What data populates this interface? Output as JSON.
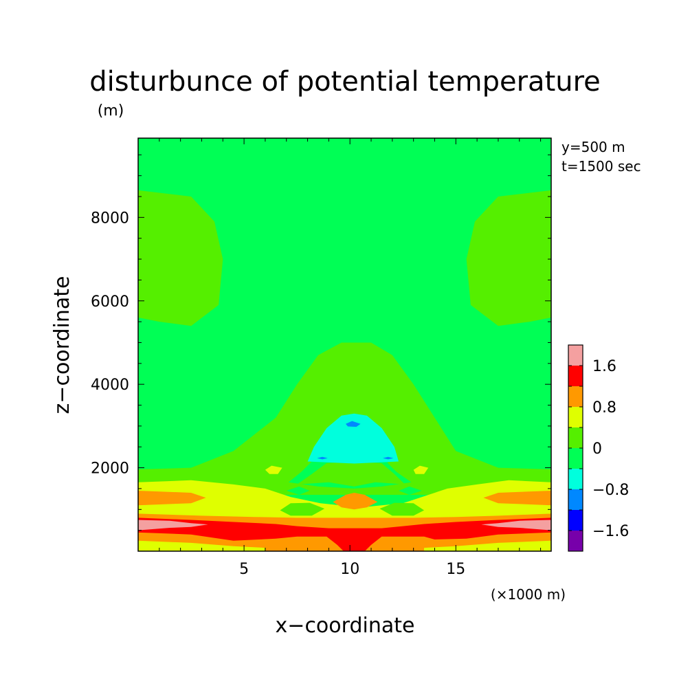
{
  "chart_data": {
    "type": "heatmap",
    "title": "disturbunce of potential temperature",
    "y_unit": "(m)",
    "x_unit": "(×1000 m)",
    "xlabel": "x−coordinate",
    "ylabel": "z−coordinate",
    "annotations": [
      "y=500 m",
      "t=1500 sec"
    ],
    "xlim": [
      0,
      19.5
    ],
    "ylim": [
      0,
      9900
    ],
    "x_ticks": [
      {
        "value": 5,
        "label": "5"
      },
      {
        "value": 10,
        "label": "10"
      },
      {
        "value": 15,
        "label": "15"
      }
    ],
    "y_ticks": [
      {
        "value": 2000,
        "label": "2000"
      },
      {
        "value": 4000,
        "label": "4000"
      },
      {
        "value": 6000,
        "label": "6000"
      },
      {
        "value": 8000,
        "label": "8000"
      }
    ],
    "colorbar": {
      "levels": [
        {
          "lower": 1.6,
          "color": "#f4a0a0"
        },
        {
          "lower": 1.2,
          "color": "#ff0000"
        },
        {
          "lower": 0.8,
          "color": "#ff9900"
        },
        {
          "lower": 0.4,
          "color": "#dfff00"
        },
        {
          "lower": 0.0,
          "color": "#55ef00"
        },
        {
          "lower": -0.4,
          "color": "#00ff55"
        },
        {
          "lower": -0.8,
          "color": "#00ffdd"
        },
        {
          "lower": -1.2,
          "color": "#0088ff"
        },
        {
          "lower": -1.6,
          "color": "#0000ff"
        },
        {
          "lower": -2.0,
          "color": "#7700aa"
        }
      ],
      "tick_labels": [
        {
          "value": 1.6,
          "label": "1.6"
        },
        {
          "value": 0.8,
          "label": "0.8"
        },
        {
          "value": 0.0,
          "label": "0"
        },
        {
          "value": -0.8,
          "label": "−0.8"
        },
        {
          "value": -1.6,
          "label": "−1.6"
        }
      ]
    },
    "background_level": -0.4,
    "regions": [
      {
        "level": 0.0,
        "points": [
          [
            0,
            8650
          ],
          [
            2.5,
            8500
          ],
          [
            3.6,
            7900
          ],
          [
            4.0,
            7000
          ],
          [
            3.8,
            5900
          ],
          [
            2.5,
            5400
          ],
          [
            1.0,
            5500
          ],
          [
            0,
            5600
          ]
        ]
      },
      {
        "level": 0.0,
        "points": [
          [
            19.5,
            8650
          ],
          [
            17,
            8500
          ],
          [
            15.9,
            7900
          ],
          [
            15.5,
            7000
          ],
          [
            15.7,
            5900
          ],
          [
            17,
            5400
          ],
          [
            18.5,
            5500
          ],
          [
            19.5,
            5600
          ]
        ]
      },
      {
        "level": 0.0,
        "points": [
          [
            0,
            1960
          ],
          [
            2.5,
            2000
          ],
          [
            4.5,
            2400
          ],
          [
            6.5,
            3200
          ],
          [
            7.5,
            4000
          ],
          [
            8.5,
            4700
          ],
          [
            9.6,
            5000
          ],
          [
            10.4,
            5000
          ],
          [
            11.0,
            5000
          ],
          [
            12.0,
            4700
          ],
          [
            13.0,
            4000
          ],
          [
            14.0,
            3200
          ],
          [
            15.0,
            2400
          ],
          [
            17.0,
            2000
          ],
          [
            19.5,
            1960
          ],
          [
            19.5,
            1350
          ],
          [
            0,
            1350
          ]
        ]
      },
      {
        "level": 0.4,
        "points": [
          [
            0,
            1650
          ],
          [
            2.5,
            1700
          ],
          [
            4.5,
            1600
          ],
          [
            6.0,
            1500
          ],
          [
            7.2,
            1300
          ],
          [
            8.6,
            1150
          ],
          [
            10.5,
            1050
          ],
          [
            12.5,
            1150
          ],
          [
            13.4,
            1300
          ],
          [
            14.6,
            1500
          ],
          [
            16.0,
            1600
          ],
          [
            17.5,
            1700
          ],
          [
            19.5,
            1650
          ],
          [
            19.5,
            0
          ],
          [
            0,
            0
          ]
        ]
      },
      {
        "level": -0.4,
        "points": [
          [
            7.1,
            1650
          ],
          [
            7.7,
            1900
          ],
          [
            8.5,
            2300
          ],
          [
            9.6,
            2750
          ],
          [
            10.5,
            2800
          ],
          [
            11.4,
            2300
          ],
          [
            12.2,
            1900
          ],
          [
            12.9,
            1650
          ],
          [
            11.5,
            1550
          ],
          [
            10.2,
            1500
          ],
          [
            8.5,
            1550
          ]
        ]
      },
      {
        "level": 0.0,
        "points": [
          [
            7.5,
            1600
          ],
          [
            8.2,
            1850
          ],
          [
            9.0,
            2150
          ],
          [
            10.2,
            2300
          ],
          [
            11.4,
            2150
          ],
          [
            12.1,
            1850
          ],
          [
            12.6,
            1600
          ],
          [
            11.2,
            1650
          ],
          [
            10.2,
            1550
          ],
          [
            9.0,
            1650
          ]
        ]
      },
      {
        "level": 0.4,
        "points": [
          [
            6.0,
            1950
          ],
          [
            6.3,
            2050
          ],
          [
            6.8,
            2000
          ],
          [
            6.6,
            1850
          ],
          [
            6.2,
            1850
          ]
        ]
      },
      {
        "level": 0.4,
        "points": [
          [
            13.0,
            1950
          ],
          [
            13.3,
            2050
          ],
          [
            13.7,
            2000
          ],
          [
            13.5,
            1850
          ],
          [
            13.1,
            1850
          ]
        ]
      },
      {
        "level": -0.4,
        "points": [
          [
            7.0,
            1450
          ],
          [
            7.6,
            1550
          ],
          [
            8.1,
            1450
          ],
          [
            7.6,
            1350
          ]
        ]
      },
      {
        "level": -0.4,
        "points": [
          [
            12.3,
            1450
          ],
          [
            12.8,
            1550
          ],
          [
            13.4,
            1450
          ],
          [
            12.8,
            1350
          ]
        ]
      },
      {
        "level": -0.4,
        "points": [
          [
            8.5,
            2100
          ],
          [
            8.8,
            2600
          ],
          [
            9.4,
            2950
          ],
          [
            10.2,
            3100
          ],
          [
            11.0,
            2950
          ],
          [
            11.5,
            2600
          ],
          [
            11.8,
            2100
          ],
          [
            10.2,
            2150
          ]
        ]
      },
      {
        "level": -0.8,
        "points": [
          [
            8.0,
            2150
          ],
          [
            8.3,
            2500
          ],
          [
            8.9,
            2950
          ],
          [
            9.6,
            3250
          ],
          [
            10.2,
            3300
          ],
          [
            10.8,
            3250
          ],
          [
            11.5,
            2950
          ],
          [
            12.1,
            2500
          ],
          [
            12.3,
            2150
          ],
          [
            10.2,
            2100
          ]
        ]
      },
      {
        "level": -0.8,
        "points": [
          [
            8.6,
            2150
          ],
          [
            9.0,
            2600
          ],
          [
            9.6,
            3100
          ],
          [
            10.2,
            3200
          ],
          [
            10.8,
            3100
          ],
          [
            11.4,
            2600
          ],
          [
            11.8,
            2150
          ]
        ]
      },
      {
        "level": -1.2,
        "points": [
          [
            9.8,
            3050
          ],
          [
            10.1,
            3120
          ],
          [
            10.5,
            3050
          ],
          [
            10.3,
            2980
          ],
          [
            9.9,
            2990
          ]
        ]
      },
      {
        "level": -1.2,
        "points": [
          [
            8.45,
            2230
          ],
          [
            8.7,
            2260
          ],
          [
            8.95,
            2230
          ],
          [
            8.7,
            2200
          ]
        ]
      },
      {
        "level": -1.2,
        "points": [
          [
            11.55,
            2230
          ],
          [
            11.8,
            2260
          ],
          [
            12.05,
            2230
          ],
          [
            11.8,
            2200
          ]
        ]
      },
      {
        "level": 0.0,
        "points": [
          [
            6.7,
            980
          ],
          [
            7.2,
            1150
          ],
          [
            8.1,
            1160
          ],
          [
            8.8,
            1020
          ],
          [
            8.2,
            850
          ],
          [
            7.2,
            850
          ]
        ]
      },
      {
        "level": 0.0,
        "points": [
          [
            11.4,
            1020
          ],
          [
            12.1,
            1160
          ],
          [
            13.0,
            1150
          ],
          [
            13.5,
            980
          ],
          [
            13.0,
            850
          ],
          [
            12.0,
            850
          ]
        ]
      },
      {
        "level": 0.8,
        "points": [
          [
            0,
            1450
          ],
          [
            2.5,
            1400
          ],
          [
            3.2,
            1280
          ],
          [
            2.5,
            1150
          ],
          [
            0,
            1100
          ]
        ]
      },
      {
        "level": 0.8,
        "points": [
          [
            19.5,
            1450
          ],
          [
            17,
            1400
          ],
          [
            16.3,
            1280
          ],
          [
            17,
            1150
          ],
          [
            19.5,
            1100
          ]
        ]
      },
      {
        "level": 0.8,
        "points": [
          [
            9.2,
            1180
          ],
          [
            9.8,
            1350
          ],
          [
            10.2,
            1400
          ],
          [
            10.7,
            1350
          ],
          [
            11.3,
            1180
          ],
          [
            10.8,
            1050
          ],
          [
            10.2,
            1000
          ],
          [
            9.6,
            1050
          ]
        ]
      },
      {
        "level": 0.8,
        "points": [
          [
            0,
            900
          ],
          [
            3,
            850
          ],
          [
            5.5,
            820
          ],
          [
            7.5,
            800
          ],
          [
            10.2,
            800
          ],
          [
            13,
            800
          ],
          [
            15,
            820
          ],
          [
            17,
            850
          ],
          [
            19.5,
            900
          ],
          [
            19.5,
            250
          ],
          [
            17,
            200
          ],
          [
            15,
            120
          ],
          [
            13.5,
            80
          ],
          [
            13.5,
            0
          ],
          [
            6.0,
            0
          ],
          [
            6.0,
            80
          ],
          [
            4.5,
            120
          ],
          [
            2.5,
            200
          ],
          [
            0,
            250
          ]
        ]
      },
      {
        "level": 1.2,
        "points": [
          [
            0,
            800
          ],
          [
            2.5,
            750
          ],
          [
            4.5,
            700
          ],
          [
            6.5,
            650
          ],
          [
            7.5,
            600
          ],
          [
            9.0,
            550
          ],
          [
            10.2,
            550
          ],
          [
            11.5,
            550
          ],
          [
            12.5,
            600
          ],
          [
            13.5,
            650
          ],
          [
            15,
            700
          ],
          [
            17,
            750
          ],
          [
            19.5,
            800
          ],
          [
            19.5,
            450
          ],
          [
            17,
            400
          ],
          [
            15.5,
            300
          ],
          [
            14.0,
            280
          ],
          [
            13.5,
            350
          ],
          [
            12.5,
            350
          ],
          [
            11.5,
            350
          ],
          [
            11.0,
            150
          ],
          [
            10.7,
            0
          ],
          [
            9.7,
            0
          ],
          [
            9.4,
            150
          ],
          [
            8.9,
            350
          ],
          [
            7.5,
            350
          ],
          [
            6.5,
            300
          ],
          [
            4.5,
            250
          ],
          [
            2.5,
            400
          ],
          [
            0,
            450
          ]
        ]
      },
      {
        "level": 1.6,
        "points": [
          [
            0,
            750
          ],
          [
            1.5,
            730
          ],
          [
            2.5,
            670
          ],
          [
            3.3,
            640
          ],
          [
            2.5,
            580
          ],
          [
            1.5,
            560
          ],
          [
            0,
            500
          ]
        ]
      },
      {
        "level": 1.6,
        "points": [
          [
            19.5,
            750
          ],
          [
            18,
            730
          ],
          [
            17,
            670
          ],
          [
            16.2,
            640
          ],
          [
            17,
            580
          ],
          [
            18,
            560
          ],
          [
            19.5,
            500
          ]
        ]
      }
    ]
  }
}
